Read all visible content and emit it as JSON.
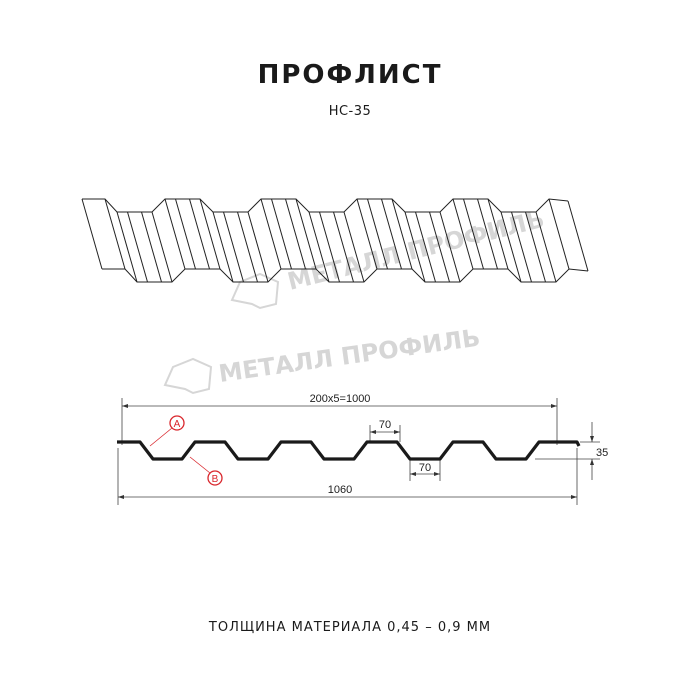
{
  "header": {
    "title": "ПРОФЛИСТ",
    "subtitle": "НС-35"
  },
  "watermark": {
    "text": "МЕТАЛЛ ПРОФИЛЬ"
  },
  "drawing": {
    "dims": {
      "pitch_total": "200x5=1000",
      "top_width": "70",
      "bottom_width": "70",
      "height": "35",
      "total_width": "1060"
    },
    "markers": {
      "a": "A",
      "b": "B"
    },
    "colors": {
      "profile": "#1a1a1a",
      "marker": "#d9262c",
      "watermark": "#d6d6d6"
    }
  },
  "footer": {
    "text": "ТОЛЩИНА МАТЕРИАЛА 0,45 – 0,9 ММ"
  }
}
